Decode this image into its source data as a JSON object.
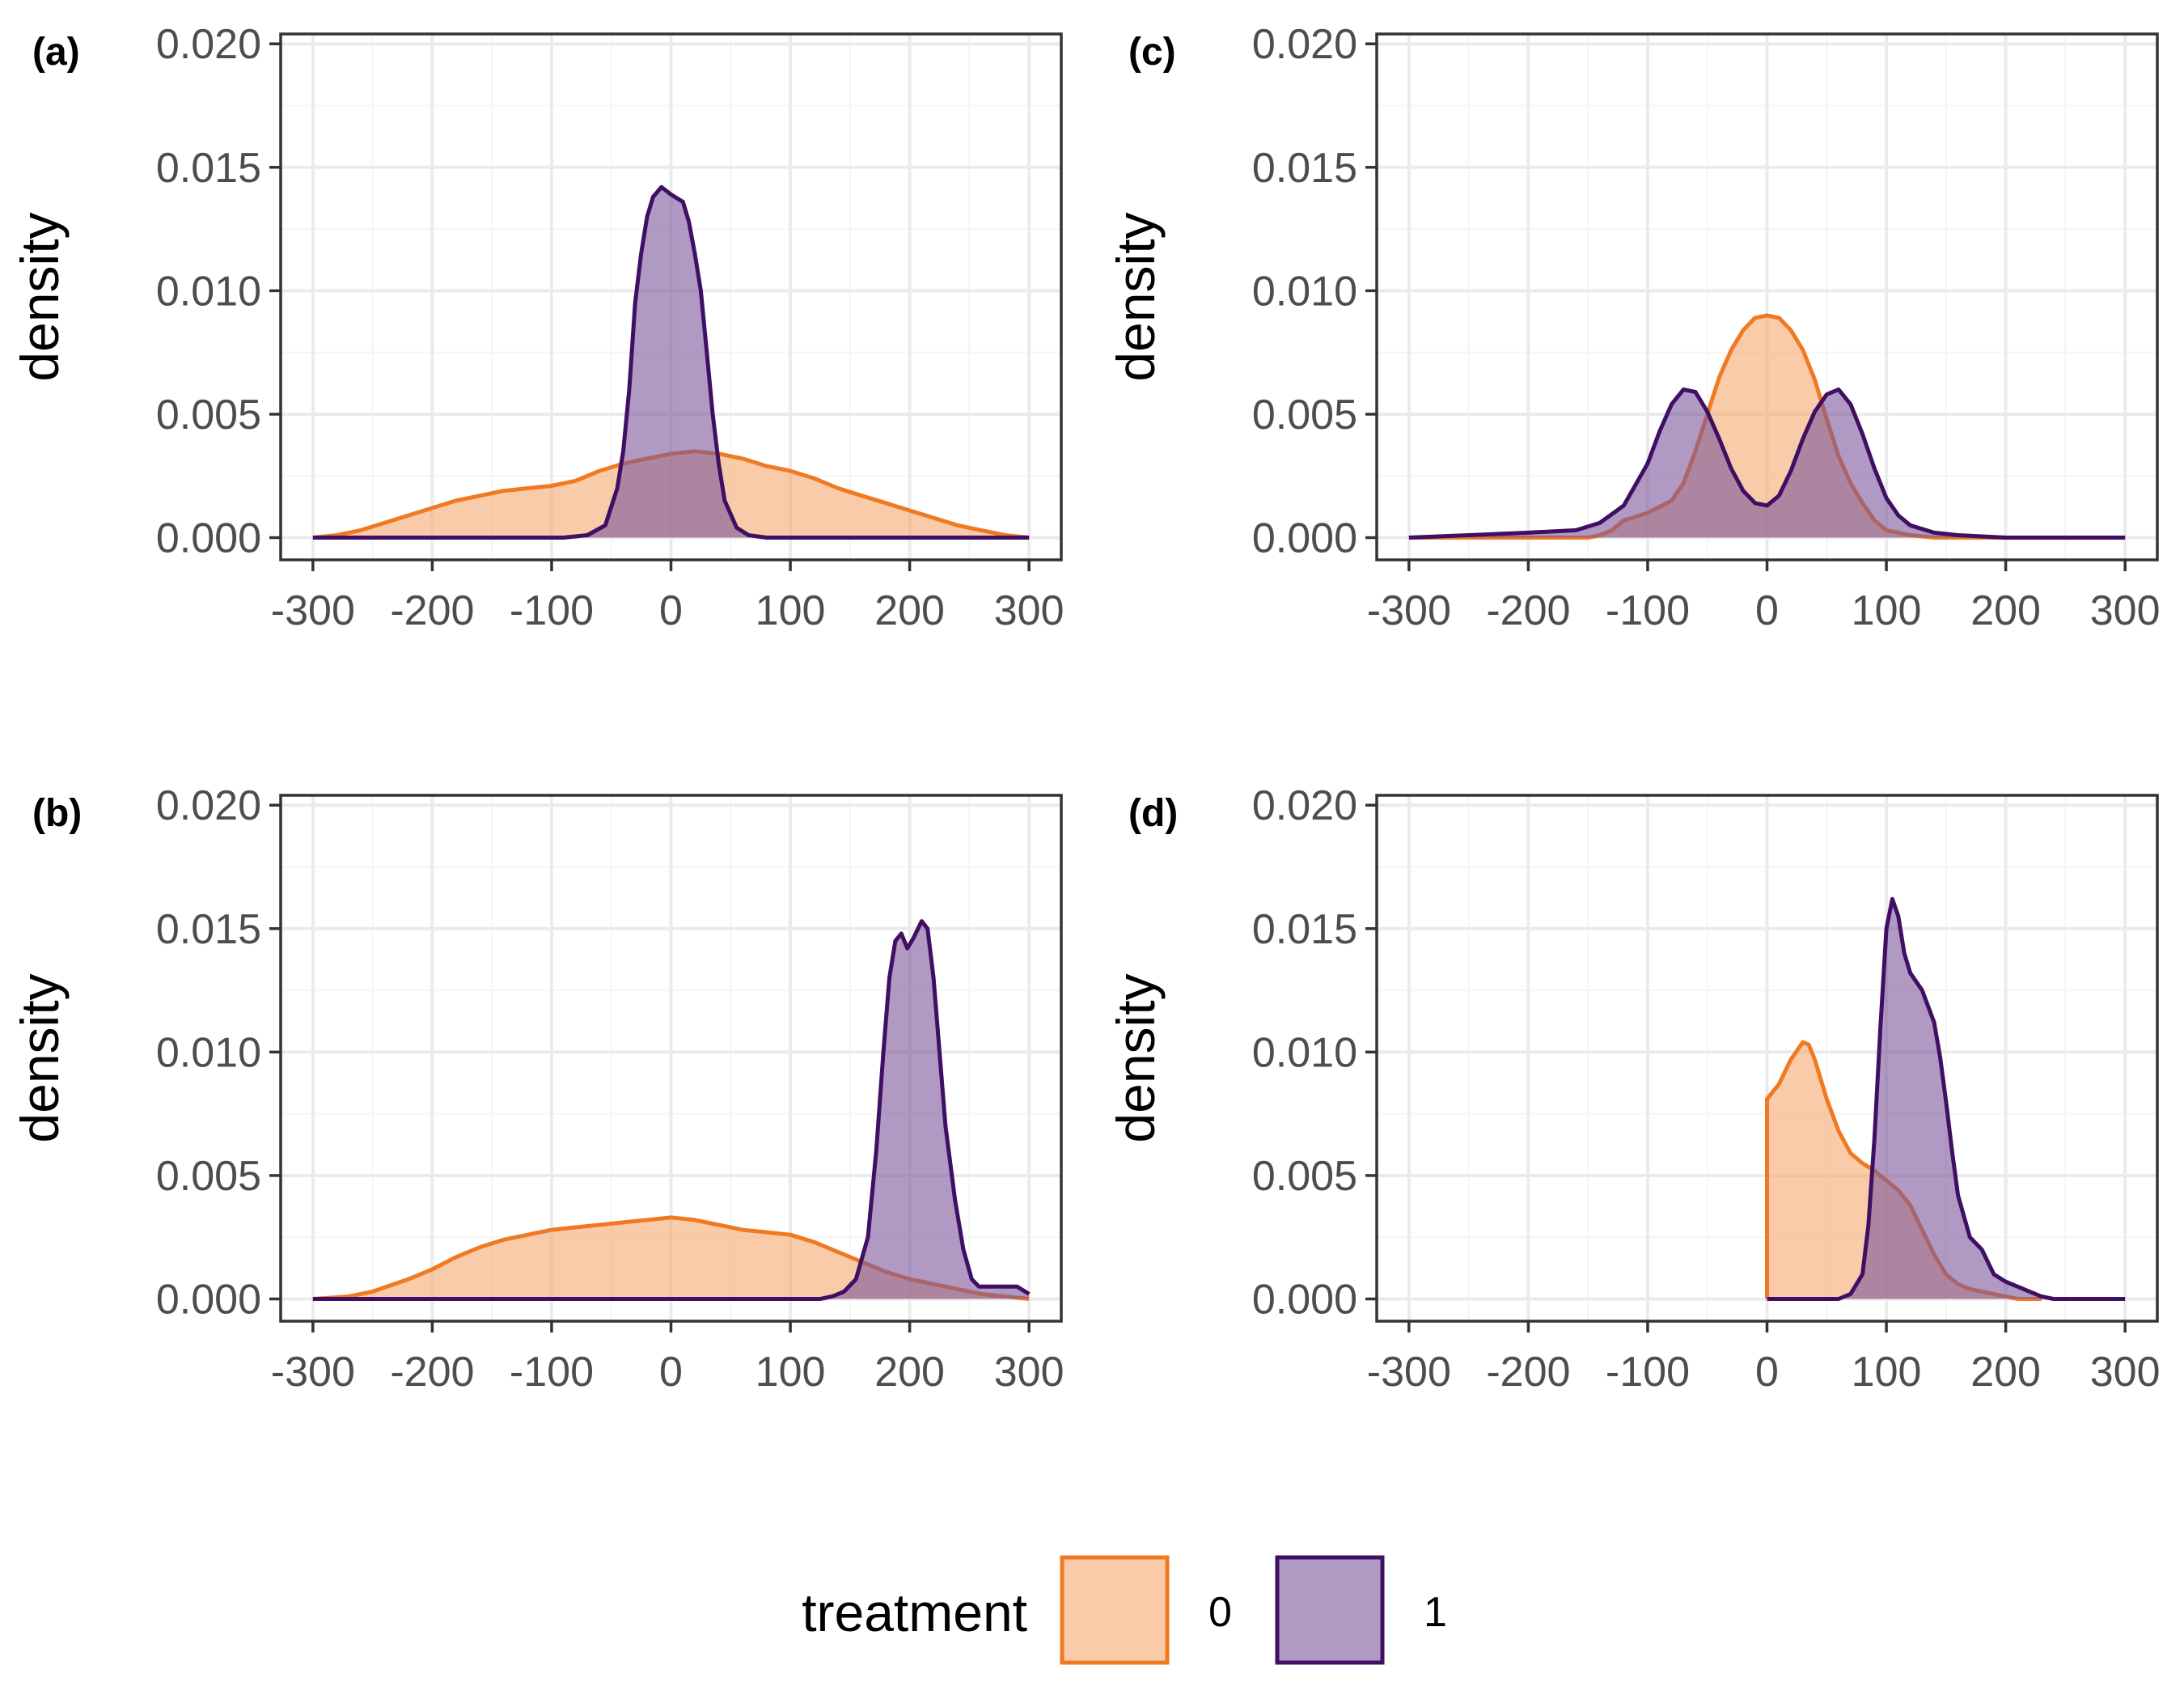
{
  "colors": {
    "series0_line": "#f07a22",
    "series0_fill": "#f6a86f",
    "series1_line": "#3f0f63",
    "series1_fill": "#7b579b",
    "grid_major": "#ebebeb",
    "grid_minor": "#f5f5f5",
    "panel_border": "#333333",
    "tick_label": "#4d4d4d"
  },
  "legend": {
    "title": "treatment",
    "items": [
      {
        "label": "0",
        "series": 0
      },
      {
        "label": "1",
        "series": 1
      }
    ],
    "placement": "bottom"
  },
  "chart_data": [
    {
      "panel": "(a)",
      "type": "area",
      "ylabel": "density",
      "xlim": [
        -300,
        300
      ],
      "ylim": [
        0,
        0.02
      ],
      "xticks": [
        -300,
        -200,
        -100,
        0,
        100,
        200,
        300
      ],
      "yticks": [
        0.0,
        0.005,
        0.01,
        0.015,
        0.02
      ],
      "xtick_labels": [
        "-300",
        "-200",
        "-100",
        "0",
        "100",
        "200",
        "300"
      ],
      "ytick_labels": [
        "0.000",
        "0.005",
        "0.010",
        "0.015",
        "0.020"
      ],
      "grid": true,
      "series": [
        {
          "name": "0",
          "points": [
            [
              -300,
              0.0
            ],
            [
              -280,
              0.0001
            ],
            [
              -260,
              0.0003
            ],
            [
              -240,
              0.0006
            ],
            [
              -220,
              0.0009
            ],
            [
              -200,
              0.0012
            ],
            [
              -180,
              0.0015
            ],
            [
              -160,
              0.0017
            ],
            [
              -140,
              0.0019
            ],
            [
              -120,
              0.002
            ],
            [
              -100,
              0.0021
            ],
            [
              -80,
              0.0023
            ],
            [
              -60,
              0.0027
            ],
            [
              -40,
              0.003
            ],
            [
              -20,
              0.0032
            ],
            [
              0,
              0.0034
            ],
            [
              20,
              0.0035
            ],
            [
              40,
              0.0034
            ],
            [
              60,
              0.0032
            ],
            [
              80,
              0.0029
            ],
            [
              100,
              0.0027
            ],
            [
              120,
              0.0024
            ],
            [
              140,
              0.002
            ],
            [
              160,
              0.0017
            ],
            [
              180,
              0.0014
            ],
            [
              200,
              0.0011
            ],
            [
              220,
              0.0008
            ],
            [
              240,
              0.0005
            ],
            [
              260,
              0.0003
            ],
            [
              280,
              0.0001
            ],
            [
              300,
              0.0
            ]
          ]
        },
        {
          "name": "1",
          "points": [
            [
              -300,
              0.0
            ],
            [
              -90,
              0.0
            ],
            [
              -70,
              0.0001
            ],
            [
              -55,
              0.0005
            ],
            [
              -45,
              0.002
            ],
            [
              -40,
              0.0035
            ],
            [
              -35,
              0.006
            ],
            [
              -30,
              0.0095
            ],
            [
              -25,
              0.0115
            ],
            [
              -20,
              0.013
            ],
            [
              -15,
              0.0138
            ],
            [
              -8,
              0.0142
            ],
            [
              0,
              0.0139
            ],
            [
              10,
              0.0136
            ],
            [
              15,
              0.0128
            ],
            [
              20,
              0.0115
            ],
            [
              25,
              0.01
            ],
            [
              30,
              0.0075
            ],
            [
              35,
              0.005
            ],
            [
              40,
              0.003
            ],
            [
              45,
              0.0015
            ],
            [
              55,
              0.0004
            ],
            [
              65,
              0.0001
            ],
            [
              80,
              0.0
            ],
            [
              300,
              0.0
            ]
          ]
        }
      ]
    },
    {
      "panel": "(b)",
      "type": "area",
      "ylabel": "density",
      "xlim": [
        -300,
        300
      ],
      "ylim": [
        0,
        0.02
      ],
      "xticks": [
        -300,
        -200,
        -100,
        0,
        100,
        200,
        300
      ],
      "yticks": [
        0.0,
        0.005,
        0.01,
        0.015,
        0.02
      ],
      "xtick_labels": [
        "-300",
        "-200",
        "-100",
        "0",
        "100",
        "200",
        "300"
      ],
      "ytick_labels": [
        "0.000",
        "0.005",
        "0.010",
        "0.015",
        "0.020"
      ],
      "grid": true,
      "series": [
        {
          "name": "0",
          "points": [
            [
              -300,
              0.0
            ],
            [
              -270,
              0.0001
            ],
            [
              -250,
              0.0003
            ],
            [
              -220,
              0.0008
            ],
            [
              -200,
              0.0012
            ],
            [
              -180,
              0.0017
            ],
            [
              -160,
              0.0021
            ],
            [
              -140,
              0.0024
            ],
            [
              -120,
              0.0026
            ],
            [
              -100,
              0.0028
            ],
            [
              -80,
              0.0029
            ],
            [
              -60,
              0.003
            ],
            [
              -40,
              0.0031
            ],
            [
              -20,
              0.0032
            ],
            [
              0,
              0.0033
            ],
            [
              20,
              0.0032
            ],
            [
              40,
              0.003
            ],
            [
              60,
              0.0028
            ],
            [
              80,
              0.0027
            ],
            [
              100,
              0.0026
            ],
            [
              120,
              0.0023
            ],
            [
              140,
              0.0019
            ],
            [
              160,
              0.0015
            ],
            [
              180,
              0.0011
            ],
            [
              200,
              0.0008
            ],
            [
              220,
              0.0006
            ],
            [
              240,
              0.0004
            ],
            [
              260,
              0.0002
            ],
            [
              280,
              0.0001
            ],
            [
              300,
              0.0
            ]
          ]
        },
        {
          "name": "1",
          "points": [
            [
              -300,
              0.0
            ],
            [
              125,
              0.0
            ],
            [
              135,
              0.0001
            ],
            [
              145,
              0.0003
            ],
            [
              155,
              0.0008
            ],
            [
              165,
              0.0025
            ],
            [
              172,
              0.006
            ],
            [
              178,
              0.01
            ],
            [
              183,
              0.013
            ],
            [
              188,
              0.0145
            ],
            [
              193,
              0.0148
            ],
            [
              198,
              0.0142
            ],
            [
              203,
              0.0146
            ],
            [
              210,
              0.0153
            ],
            [
              215,
              0.015
            ],
            [
              220,
              0.013
            ],
            [
              225,
              0.01
            ],
            [
              230,
              0.007
            ],
            [
              238,
              0.004
            ],
            [
              245,
              0.002
            ],
            [
              252,
              0.0008
            ],
            [
              258,
              0.0005
            ],
            [
              275,
              0.0005
            ],
            [
              290,
              0.0005
            ],
            [
              300,
              0.0002
            ]
          ]
        }
      ]
    },
    {
      "panel": "(c)",
      "type": "area",
      "ylabel": "density",
      "xlim": [
        -300,
        300
      ],
      "ylim": [
        0,
        0.02
      ],
      "xticks": [
        -300,
        -200,
        -100,
        0,
        100,
        200,
        300
      ],
      "yticks": [
        0.0,
        0.005,
        0.01,
        0.015,
        0.02
      ],
      "xtick_labels": [
        "-300",
        "-200",
        "-100",
        "0",
        "100",
        "200",
        "300"
      ],
      "ytick_labels": [
        "0.000",
        "0.005",
        "0.010",
        "0.015",
        "0.020"
      ],
      "grid": true,
      "series": [
        {
          "name": "0",
          "points": [
            [
              -300,
              0.0
            ],
            [
              -150,
              0.0
            ],
            [
              -140,
              0.0001
            ],
            [
              -130,
              0.0003
            ],
            [
              -120,
              0.0007
            ],
            [
              -100,
              0.001
            ],
            [
              -80,
              0.0015
            ],
            [
              -70,
              0.0022
            ],
            [
              -60,
              0.0035
            ],
            [
              -50,
              0.005
            ],
            [
              -40,
              0.0065
            ],
            [
              -30,
              0.0076
            ],
            [
              -20,
              0.0084
            ],
            [
              -10,
              0.0089
            ],
            [
              0,
              0.009
            ],
            [
              10,
              0.0089
            ],
            [
              20,
              0.0084
            ],
            [
              30,
              0.0076
            ],
            [
              40,
              0.0064
            ],
            [
              50,
              0.0048
            ],
            [
              60,
              0.0033
            ],
            [
              70,
              0.0022
            ],
            [
              80,
              0.0014
            ],
            [
              90,
              0.0007
            ],
            [
              100,
              0.0003
            ],
            [
              120,
              0.0001
            ],
            [
              140,
              0.0
            ],
            [
              300,
              0.0
            ]
          ]
        },
        {
          "name": "1",
          "points": [
            [
              -300,
              0.0
            ],
            [
              -250,
              0.0001
            ],
            [
              -200,
              0.0002
            ],
            [
              -160,
              0.0003
            ],
            [
              -140,
              0.0006
            ],
            [
              -120,
              0.0013
            ],
            [
              -100,
              0.003
            ],
            [
              -90,
              0.0043
            ],
            [
              -80,
              0.0054
            ],
            [
              -70,
              0.006
            ],
            [
              -60,
              0.0059
            ],
            [
              -50,
              0.0051
            ],
            [
              -40,
              0.004
            ],
            [
              -30,
              0.0028
            ],
            [
              -20,
              0.0019
            ],
            [
              -10,
              0.0014
            ],
            [
              0,
              0.0013
            ],
            [
              10,
              0.0017
            ],
            [
              20,
              0.0027
            ],
            [
              30,
              0.004
            ],
            [
              40,
              0.0051
            ],
            [
              50,
              0.0058
            ],
            [
              60,
              0.006
            ],
            [
              70,
              0.0054
            ],
            [
              80,
              0.0042
            ],
            [
              90,
              0.0028
            ],
            [
              100,
              0.0016
            ],
            [
              110,
              0.0009
            ],
            [
              120,
              0.0005
            ],
            [
              140,
              0.0002
            ],
            [
              160,
              0.0001
            ],
            [
              200,
              0.0
            ],
            [
              300,
              0.0
            ]
          ]
        }
      ]
    },
    {
      "panel": "(d)",
      "type": "area",
      "ylabel": "density",
      "xlim": [
        -300,
        300
      ],
      "ylim": [
        0,
        0.02
      ],
      "xticks": [
        -300,
        -200,
        -100,
        0,
        100,
        200,
        300
      ],
      "yticks": [
        0.0,
        0.005,
        0.01,
        0.015,
        0.02
      ],
      "xtick_labels": [
        "-300",
        "-200",
        "-100",
        "0",
        "100",
        "200",
        "300"
      ],
      "ytick_labels": [
        "0.000",
        "0.005",
        "0.010",
        "0.015",
        "0.020"
      ],
      "grid": true,
      "series": [
        {
          "name": "0",
          "points": [
            [
              0,
              0.0
            ],
            [
              0,
              0.0081
            ],
            [
              10,
              0.0087
            ],
            [
              20,
              0.0097
            ],
            [
              30,
              0.0104
            ],
            [
              35,
              0.0103
            ],
            [
              40,
              0.0097
            ],
            [
              50,
              0.0081
            ],
            [
              60,
              0.0068
            ],
            [
              70,
              0.0059
            ],
            [
              80,
              0.0055
            ],
            [
              90,
              0.0052
            ],
            [
              100,
              0.0048
            ],
            [
              110,
              0.0044
            ],
            [
              120,
              0.0038
            ],
            [
              130,
              0.0028
            ],
            [
              140,
              0.0018
            ],
            [
              150,
              0.001
            ],
            [
              160,
              0.0006
            ],
            [
              170,
              0.0004
            ],
            [
              180,
              0.0003
            ],
            [
              190,
              0.0002
            ],
            [
              200,
              0.0001
            ],
            [
              210,
              0.0
            ],
            [
              230,
              0.0
            ]
          ]
        },
        {
          "name": "1",
          "points": [
            [
              0,
              0.0
            ],
            [
              60,
              0.0
            ],
            [
              70,
              0.0002
            ],
            [
              80,
              0.001
            ],
            [
              85,
              0.003
            ],
            [
              90,
              0.0065
            ],
            [
              95,
              0.011
            ],
            [
              100,
              0.015
            ],
            [
              105,
              0.0162
            ],
            [
              110,
              0.0155
            ],
            [
              115,
              0.014
            ],
            [
              120,
              0.0132
            ],
            [
              130,
              0.0125
            ],
            [
              140,
              0.0112
            ],
            [
              145,
              0.0098
            ],
            [
              150,
              0.008
            ],
            [
              155,
              0.006
            ],
            [
              160,
              0.0042
            ],
            [
              170,
              0.0025
            ],
            [
              180,
              0.002
            ],
            [
              190,
              0.001
            ],
            [
              200,
              0.0007
            ],
            [
              210,
              0.0005
            ],
            [
              220,
              0.0003
            ],
            [
              230,
              0.0001
            ],
            [
              240,
              0.0
            ],
            [
              300,
              0.0
            ]
          ]
        }
      ]
    }
  ]
}
